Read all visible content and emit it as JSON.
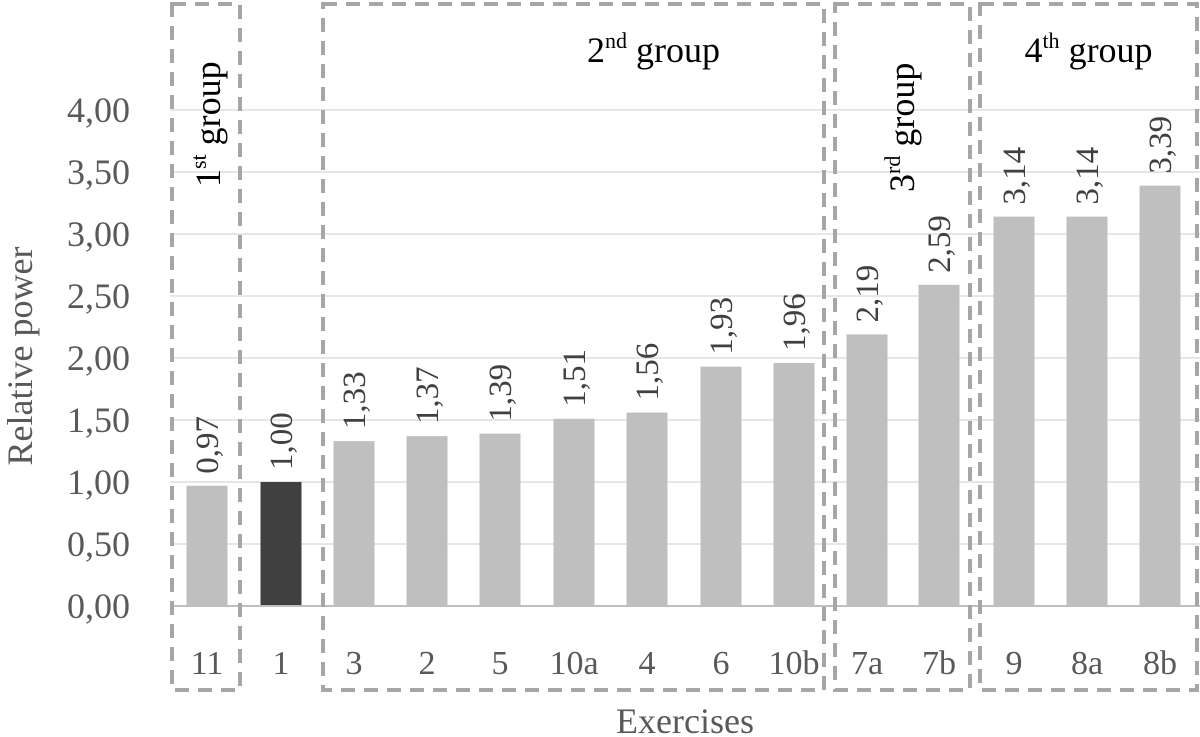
{
  "chart_data": {
    "type": "bar",
    "xlabel": "Exercises",
    "ylabel": "Relative power",
    "ylim": [
      0,
      4.0
    ],
    "yticks": [
      "0,00",
      "0,50",
      "1,00",
      "1,50",
      "2,00",
      "2,50",
      "3,00",
      "3,50",
      "4,00"
    ],
    "grid": true,
    "categories": [
      "11",
      "1",
      "3",
      "2",
      "5",
      "10a",
      "4",
      "6",
      "10b",
      "7a",
      "7b",
      "9",
      "8a",
      "8b"
    ],
    "values": [
      0.97,
      1.0,
      1.33,
      1.37,
      1.39,
      1.51,
      1.56,
      1.93,
      1.96,
      2.19,
      2.59,
      3.14,
      3.14,
      3.39
    ],
    "value_labels": [
      "0,97",
      "1,00",
      "1,33",
      "1,37",
      "1,39",
      "1,51",
      "1,56",
      "1,93",
      "1,96",
      "2,19",
      "2,59",
      "3,14",
      "3,14",
      "3,39"
    ],
    "highlight_index": 1,
    "colors": {
      "bar": "#bfbfbf",
      "highlight": "#404040",
      "group_box": "#a6a6a6",
      "grid": "#e6e6e6"
    },
    "groups": [
      {
        "num": "1",
        "sup": "st",
        "word": " group",
        "first": 0,
        "last": 0,
        "label_orientation": "vertical"
      },
      {
        "num": "2",
        "sup": "nd",
        "word": " group",
        "first": 2,
        "last": 8,
        "label_orientation": "horizontal"
      },
      {
        "num": "3",
        "sup": "rd",
        "word": " group",
        "first": 9,
        "last": 10,
        "label_orientation": "vertical"
      },
      {
        "num": "4",
        "sup": "th",
        "word": " group",
        "first": 11,
        "last": 13,
        "label_orientation": "horizontal"
      }
    ]
  }
}
